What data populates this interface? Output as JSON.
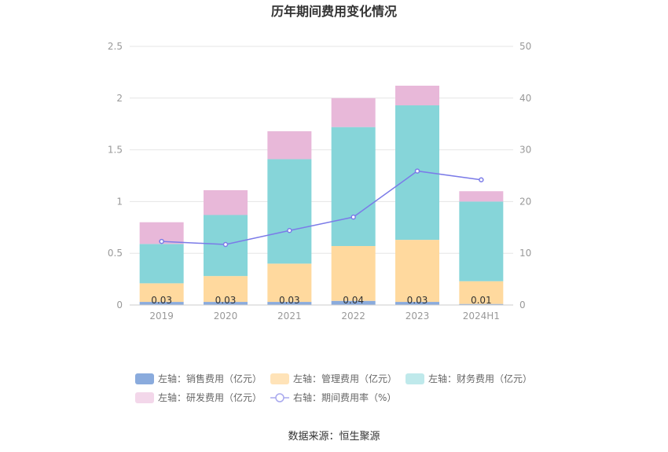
{
  "chart_data": {
    "type": "bar",
    "stacked": true,
    "title": "历年期间费用变化情况",
    "categories": [
      "2019",
      "2020",
      "2021",
      "2022",
      "2023",
      "2024H1"
    ],
    "left_axis": {
      "min": 0,
      "max": 2.5,
      "ticks": [
        "0",
        "0.5",
        "1",
        "1.5",
        "2",
        "2.5"
      ]
    },
    "right_axis": {
      "min": 0,
      "max": 50,
      "ticks": [
        "0",
        "10",
        "20",
        "30",
        "40",
        "50"
      ]
    },
    "series": [
      {
        "name": "左轴：销售费用（亿元）",
        "axis": "left",
        "kind": "bar",
        "color": "#8aabdd",
        "values": [
          0.03,
          0.03,
          0.03,
          0.04,
          0.03,
          0.01
        ],
        "labels": [
          "0.03",
          "0.03",
          "0.03",
          "0.04",
          "0.03",
          "0.01"
        ]
      },
      {
        "name": "左轴：管理费用（亿元）",
        "axis": "left",
        "kind": "bar",
        "color": "#ffd99e",
        "values": [
          0.18,
          0.25,
          0.37,
          0.53,
          0.6,
          0.22
        ]
      },
      {
        "name": "左轴：财务费用（亿元）",
        "axis": "left",
        "kind": "bar",
        "color": "#86d5d9",
        "values": [
          0.38,
          0.59,
          1.01,
          1.15,
          1.3,
          0.77
        ]
      },
      {
        "name": "左轴：研发费用（亿元）",
        "axis": "left",
        "kind": "bar",
        "color": "#e8b8d9",
        "values": [
          0.21,
          0.24,
          0.27,
          0.28,
          0.19,
          0.1
        ]
      },
      {
        "name": "右轴：期间费用率（%）",
        "axis": "right",
        "kind": "line",
        "color": "#7b7be8",
        "values": [
          12.3,
          11.7,
          14.4,
          17.0,
          25.9,
          24.2
        ]
      }
    ],
    "legend_colors": [
      "#8aabdd",
      "#ffe3b8",
      "#bfe9eb",
      "#f3d7ea",
      "#a9a9ee"
    ],
    "legend_position": "bottom"
  },
  "source_text": "数据来源：恒生聚源"
}
